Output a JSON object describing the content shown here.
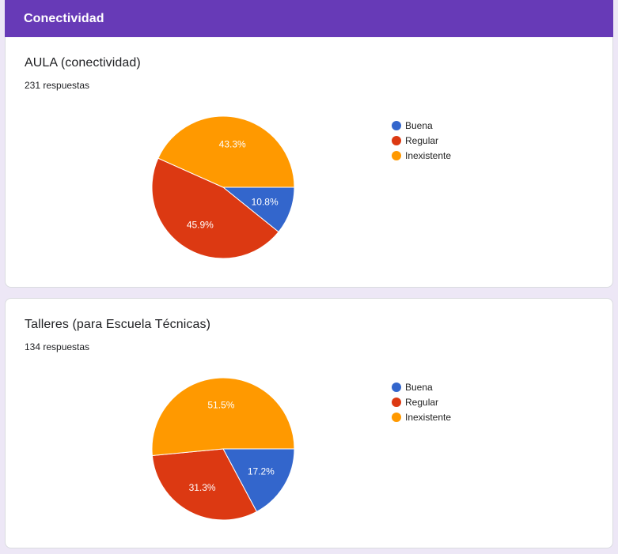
{
  "section": {
    "title": "Conectividad"
  },
  "questions": [
    {
      "title": "AULA (conectividad)",
      "responses": "231 respuestas",
      "chart_data": {
        "type": "pie",
        "categories": [
          "Buena",
          "Regular",
          "Inexistente"
        ],
        "values": [
          10.8,
          45.9,
          43.3
        ],
        "labels": [
          "10.8%",
          "45.9%",
          "43.3%"
        ],
        "colors": [
          "#3366cc",
          "#dc3912",
          "#ff9900"
        ],
        "legend": "right"
      }
    },
    {
      "title": "Talleres (para Escuela Técnicas)",
      "responses": "134 respuestas",
      "chart_data": {
        "type": "pie",
        "categories": [
          "Buena",
          "Regular",
          "Inexistente"
        ],
        "values": [
          17.2,
          31.3,
          51.5
        ],
        "labels": [
          "17.2%",
          "31.3%",
          "51.5%"
        ],
        "colors": [
          "#3366cc",
          "#dc3912",
          "#ff9900"
        ],
        "legend": "right"
      }
    }
  ]
}
